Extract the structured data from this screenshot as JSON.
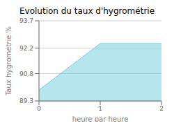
{
  "chart_data": {
    "type": "area",
    "title": "Evolution du taux d'hygrométrie",
    "xlabel": "heure par heure",
    "ylabel": "Taux hygrométrie %",
    "x": [
      0,
      1,
      2
    ],
    "values": [
      89.9,
      92.45,
      92.45
    ],
    "color": "#70cce0",
    "xlim": [
      0,
      2
    ],
    "xticks": [
      0,
      1,
      2
    ],
    "ylim": [
      89.3,
      93.7
    ],
    "yticks": [
      89.3,
      90.8,
      92.2,
      93.7
    ],
    "grid": true
  }
}
